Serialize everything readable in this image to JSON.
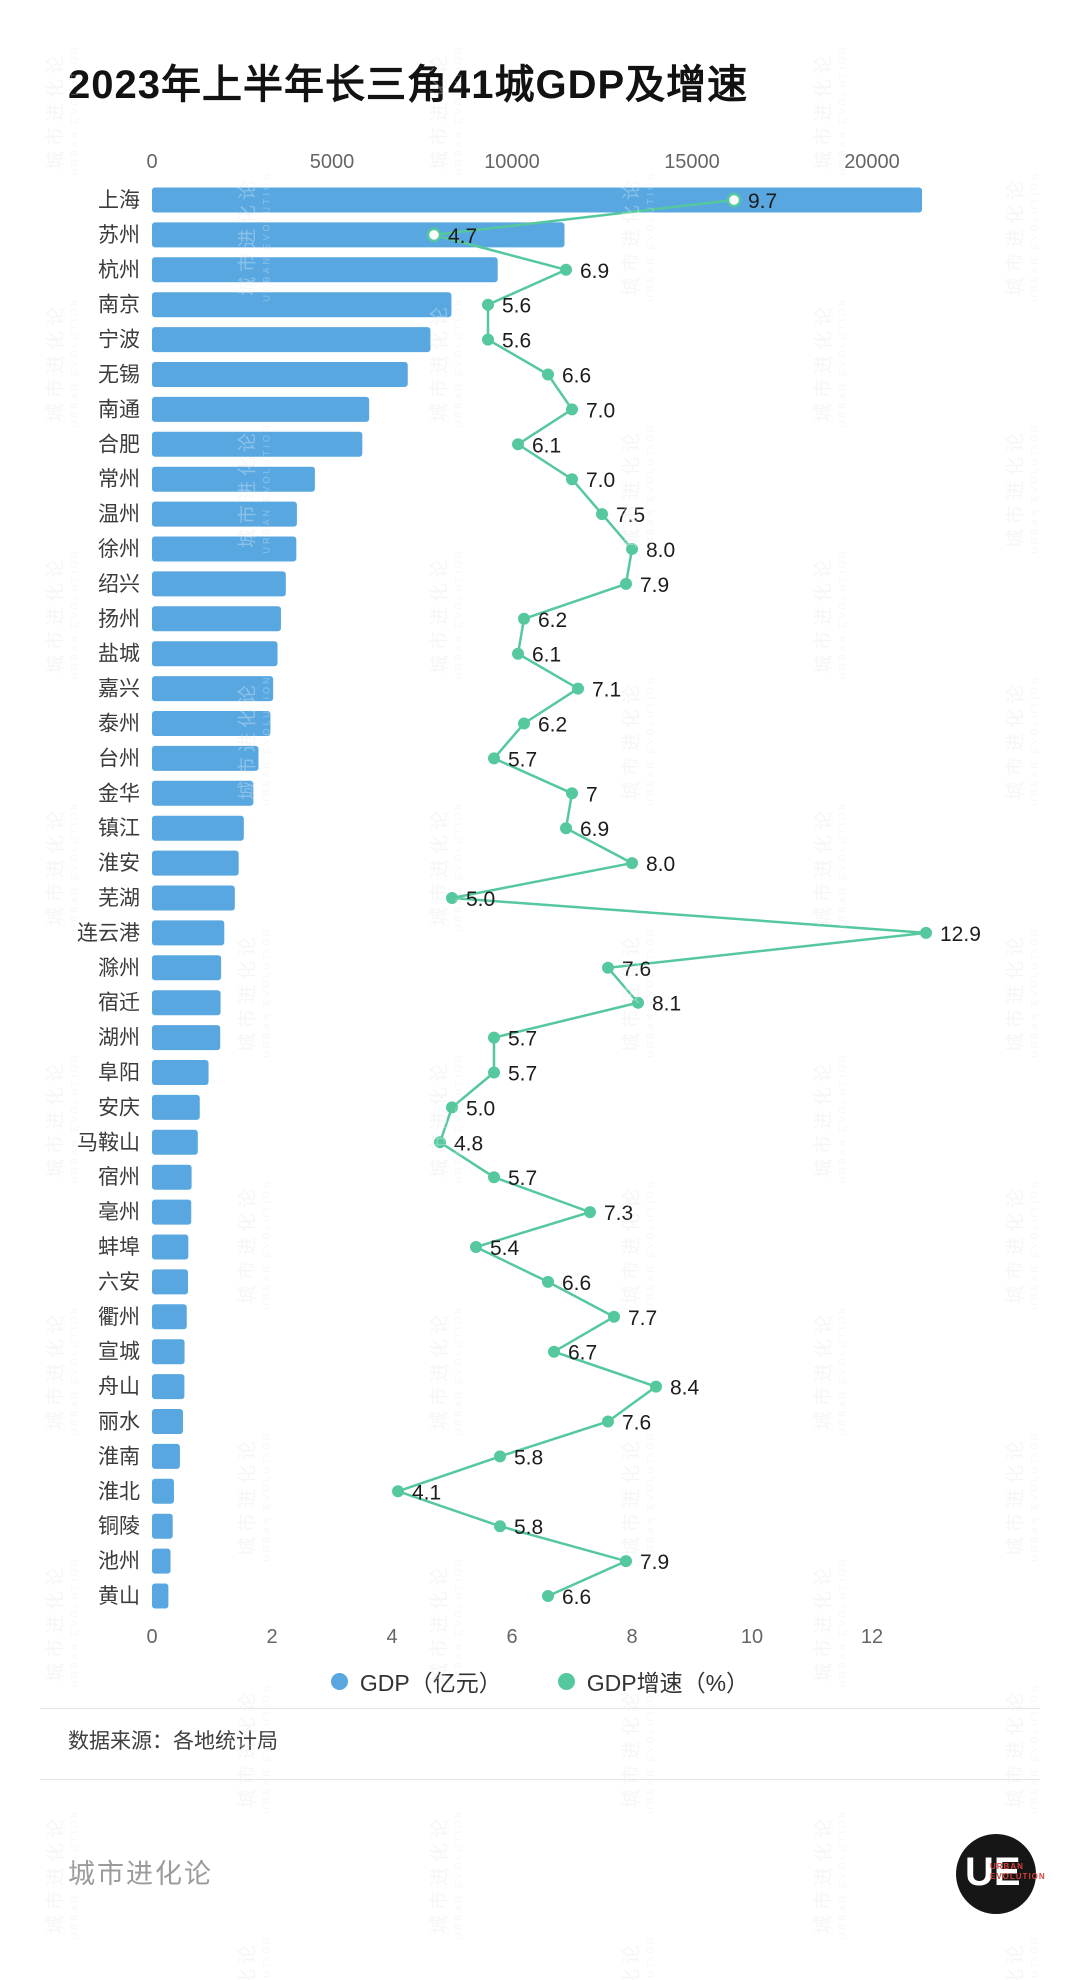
{
  "title": "2023年上半年长三角41城GDP及增速",
  "watermark": {
    "line1": "城市进化论",
    "line2": "URBAN EVOLUTION"
  },
  "chart_data": {
    "type": "bar",
    "orientation": "horizontal",
    "title": "2023年上半年长三角41城GDP及增速",
    "categories": [
      "上海",
      "苏州",
      "杭州",
      "南京",
      "宁波",
      "无锡",
      "南通",
      "合肥",
      "常州",
      "温州",
      "徐州",
      "绍兴",
      "扬州",
      "盐城",
      "嘉兴",
      "泰州",
      "台州",
      "金华",
      "镇江",
      "淮安",
      "芜湖",
      "连云港",
      "滁州",
      "宿迁",
      "湖州",
      "阜阳",
      "安庆",
      "马鞍山",
      "宿州",
      "亳州",
      "蚌埠",
      "六安",
      "衢州",
      "宣城",
      "舟山",
      "丽水",
      "淮南",
      "淮北",
      "铜陵",
      "池州",
      "黄山"
    ],
    "series": [
      {
        "name": "GDP（亿元）",
        "type": "bar",
        "color": "#59A7E0",
        "values": [
          21390,
          11458,
          9602,
          8317,
          7735,
          7104,
          6032,
          5842,
          4525,
          4025,
          4009,
          3717,
          3582,
          3487,
          3365,
          3290,
          2958,
          2815,
          2551,
          2408,
          2301,
          2008,
          1920,
          1905,
          1895,
          1571,
          1327,
          1272,
          1100,
          1090,
          1010,
          1000,
          965,
          905,
          900,
          860,
          775,
          610,
          575,
          515,
          455
        ]
      },
      {
        "name": "GDP增速（%）",
        "type": "line",
        "color": "#55C89E",
        "values": [
          9.7,
          4.7,
          6.9,
          5.6,
          5.6,
          6.6,
          7.0,
          6.1,
          7.0,
          7.5,
          8.0,
          7.9,
          6.2,
          6.1,
          7.1,
          6.2,
          5.7,
          7.0,
          6.9,
          8.0,
          5.0,
          12.9,
          7.6,
          8.1,
          5.7,
          5.7,
          5.0,
          4.8,
          5.7,
          7.3,
          5.4,
          6.6,
          7.7,
          6.7,
          8.4,
          7.6,
          5.8,
          4.1,
          5.8,
          7.9,
          6.6
        ],
        "labels": [
          "9.7",
          "4.7",
          "6.9",
          "5.6",
          "5.6",
          "6.6",
          "7.0",
          "6.1",
          "7.0",
          "7.5",
          "8.0",
          "7.9",
          "6.2",
          "6.1",
          "7.1",
          "6.2",
          "5.7",
          "7",
          "6.9",
          "8.0",
          "5.0",
          "12.9",
          "7.6",
          "8.1",
          "5.7",
          "5.7",
          "5.0",
          "4.8",
          "5.7",
          "7.3",
          "5.4",
          "6.6",
          "7.7",
          "6.7",
          "8.4",
          "7.6",
          "5.8",
          "4.1",
          "5.8",
          "7.9",
          "6.6"
        ],
        "hollow_indices": [
          0,
          1
        ]
      }
    ],
    "gdp_axis": {
      "position": "top",
      "ticks": [
        0,
        5000,
        10000,
        15000,
        20000
      ],
      "max": 24667
    },
    "growth_axis": {
      "position": "bottom",
      "ticks": [
        0,
        2,
        4,
        6,
        8,
        10,
        12
      ],
      "max": 14.8
    },
    "grid": "off",
    "legend_position": "bottom"
  },
  "legend": {
    "gdp_label": "GDP（亿元）",
    "growth_label": "GDP增速（%）"
  },
  "source": "数据来源：各地统计局",
  "footer": {
    "brand": "城市进化论",
    "logo_text": "UE",
    "logo_subtext": "URBAN EVOLUTION"
  },
  "colors": {
    "bar_blue": "#59A7E0",
    "line_green": "#55C89E",
    "label_dark": "#1c1c1c",
    "axis_gray": "#666666"
  }
}
